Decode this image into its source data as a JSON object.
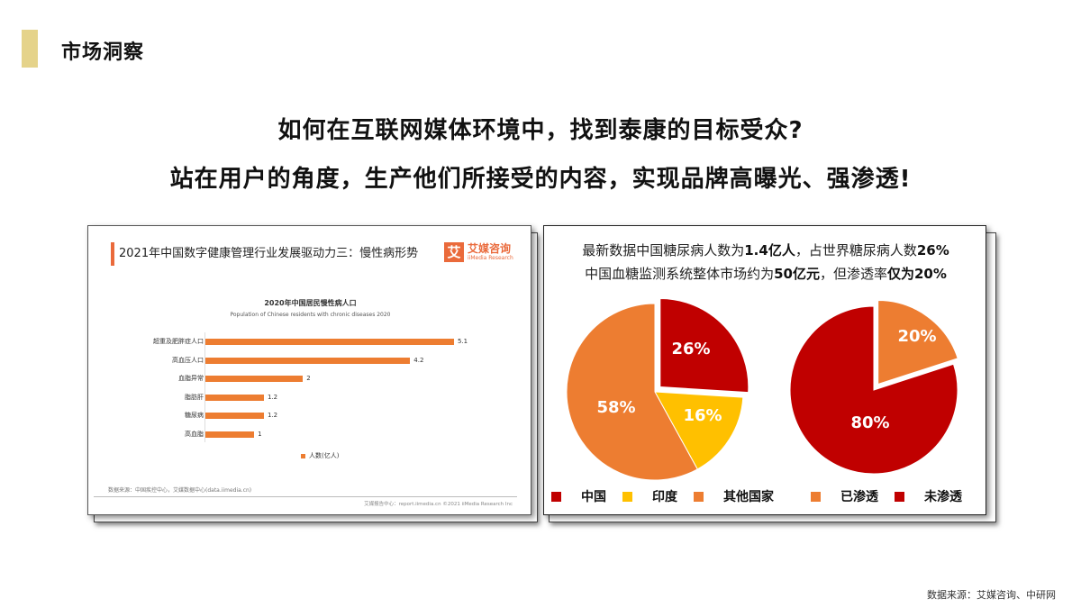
{
  "header": {
    "section_title": "市场洞察",
    "accent_color": "#e5d38a"
  },
  "headline": {
    "line1": "如何在互联网媒体环境中，找到泰康的目标受众?",
    "line2": "站在用户的角度，生产他们所接受的内容，实现品牌高曝光、强渗透!"
  },
  "left_card": {
    "report_title": "2021年中国数字健康管理行业发展驱动力三：慢性病形势",
    "brand": {
      "logo_char": "艾",
      "name_cn": "艾媒咨询",
      "name_en": "iiMedia Research",
      "color": "#ea6a3b"
    },
    "source": "数据来源：中国疾控中心，艾媒数据中心(data.iimedia.cn)",
    "footer": "艾媒报告中心：report.iimedia.cn   ©2021  iiMedia Research  Inc"
  },
  "right_card": {
    "stat1_pre": "最新数据中国糖尿病人数为",
    "stat1_b1": "1.4亿人",
    "stat1_mid": "，占世界糖尿病人数",
    "stat1_b2": "26%",
    "stat2_pre": "中国血糖监测系统整体市场约为",
    "stat2_b1": "50亿元",
    "stat2_mid": "，但渗透率",
    "stat2_b2": "仅为20%"
  },
  "chart_data": [
    {
      "type": "bar",
      "orientation": "horizontal",
      "title": "2020年中国居民慢性病人口",
      "subtitle": "Population of Chinese residents with chronic diseases 2020",
      "categories": [
        "超重及肥胖症人口",
        "高血压人口",
        "血脂异常",
        "脂肪肝",
        "糖尿病",
        "高血脂"
      ],
      "values": [
        5.1,
        4.2,
        2,
        1.2,
        1.2,
        1
      ],
      "value_labels": [
        "5.1",
        "4.2",
        "2",
        "1.2",
        "1.2",
        "1"
      ],
      "legend": [
        "人数(亿人)"
      ],
      "xlabel": "",
      "ylabel": "",
      "color": "#ed7d31",
      "grid": false
    },
    {
      "type": "pie",
      "title": "",
      "categories": [
        "中国",
        "印度",
        "其他国家"
      ],
      "values": [
        26,
        16,
        58
      ],
      "labels": [
        "26%",
        "16%",
        "58%"
      ],
      "colors": [
        "#c00000",
        "#ffc000",
        "#ed7d31"
      ],
      "exploded": [
        "中国"
      ],
      "legend_position": "bottom"
    },
    {
      "type": "pie",
      "title": "",
      "categories": [
        "已渗透",
        "未渗透"
      ],
      "values": [
        20,
        80
      ],
      "labels": [
        "20%",
        "80%"
      ],
      "colors": [
        "#ed7d31",
        "#c00000"
      ],
      "exploded": [
        "已渗透"
      ],
      "legend_position": "bottom"
    }
  ],
  "footer": {
    "source": "数据来源：艾媒咨询、中研网"
  }
}
